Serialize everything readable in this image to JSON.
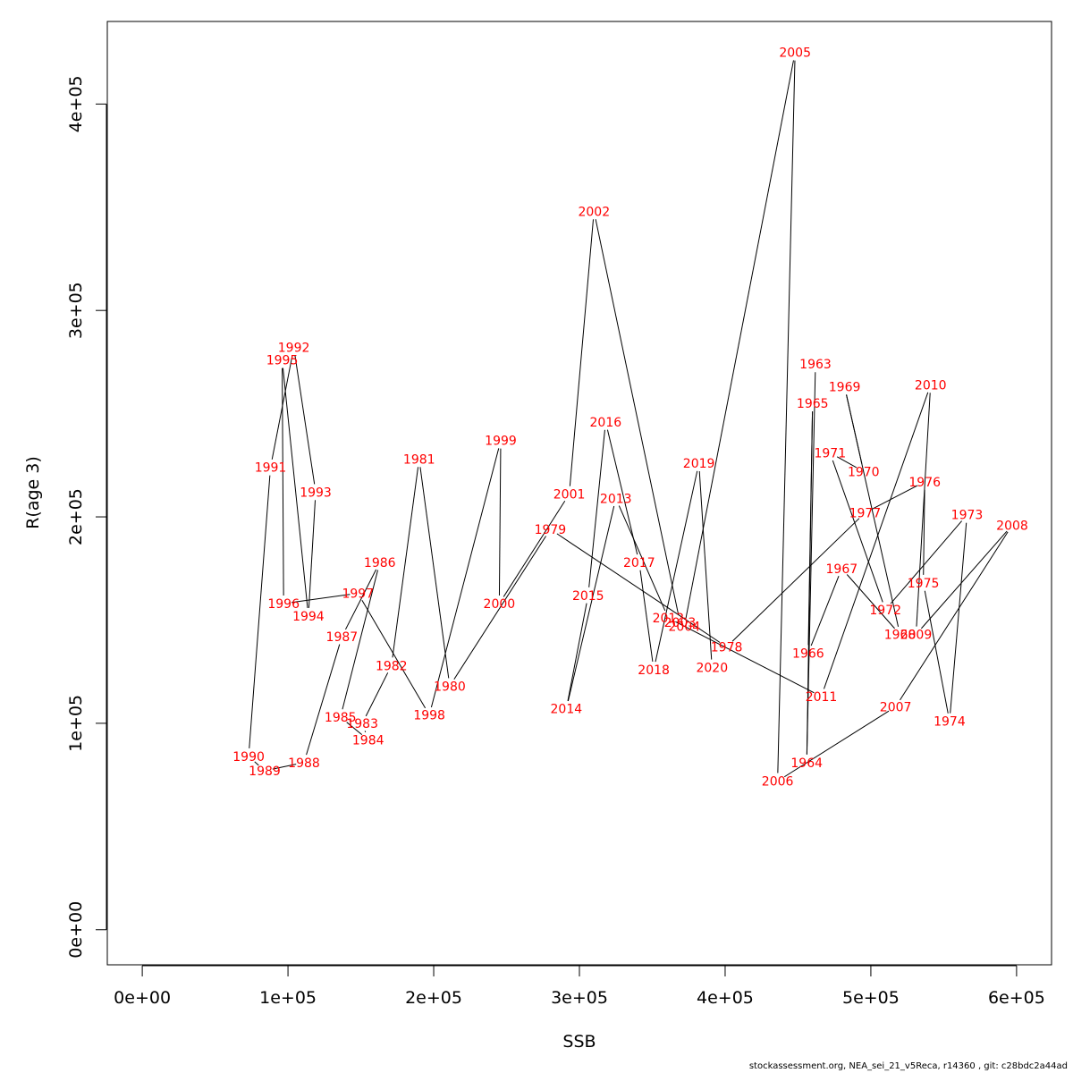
{
  "chart_data": {
    "type": "line",
    "xlabel": "SSB",
    "ylabel": "R(age 3)",
    "xlim": [
      -24000,
      624000
    ],
    "ylim": [
      -17000,
      440000
    ],
    "x_ticks": [
      0,
      100000,
      200000,
      300000,
      400000,
      500000,
      600000
    ],
    "x_tick_labels": [
      "0e+00",
      "1e+05",
      "2e+05",
      "3e+05",
      "4e+05",
      "5e+05",
      "6e+05"
    ],
    "y_ticks": [
      0,
      100000,
      200000,
      300000,
      400000
    ],
    "y_tick_labels": [
      "0e+00",
      "1e+05",
      "2e+05",
      "3e+05",
      "4e+05"
    ],
    "series": [
      {
        "points": [
          {
            "label": "1963",
            "x": 462000,
            "y": 274000
          },
          {
            "label": "1964",
            "x": 456000,
            "y": 81000
          },
          {
            "label": "1965",
            "x": 460000,
            "y": 255000
          },
          {
            "label": "1966",
            "x": 457000,
            "y": 134000
          },
          {
            "label": "1967",
            "x": 480000,
            "y": 175000
          },
          {
            "label": "1968",
            "x": 520000,
            "y": 143000
          },
          {
            "label": "1969",
            "x": 482000,
            "y": 263000
          },
          {
            "label": "1970",
            "x": 495000,
            "y": 222000
          },
          {
            "label": "1971",
            "x": 472000,
            "y": 231000
          },
          {
            "label": "1972",
            "x": 510000,
            "y": 155000
          },
          {
            "label": "1973",
            "x": 566000,
            "y": 201000
          },
          {
            "label": "1974",
            "x": 554000,
            "y": 101000
          },
          {
            "label": "1975",
            "x": 536000,
            "y": 168000
          },
          {
            "label": "1976",
            "x": 537000,
            "y": 217000
          },
          {
            "label": "1977",
            "x": 496000,
            "y": 202000
          },
          {
            "label": "1978",
            "x": 401000,
            "y": 137000
          },
          {
            "label": "1979",
            "x": 280000,
            "y": 194000
          },
          {
            "label": "1980",
            "x": 211000,
            "y": 118000
          },
          {
            "label": "1981",
            "x": 190000,
            "y": 228000
          },
          {
            "label": "1982",
            "x": 171000,
            "y": 128000
          },
          {
            "label": "1983",
            "x": 151000,
            "y": 100000
          },
          {
            "label": "1984",
            "x": 155000,
            "y": 92000
          },
          {
            "label": "1985",
            "x": 136000,
            "y": 103000
          },
          {
            "label": "1986",
            "x": 163000,
            "y": 178000
          },
          {
            "label": "1987",
            "x": 137000,
            "y": 142000
          },
          {
            "label": "1988",
            "x": 111000,
            "y": 81000
          },
          {
            "label": "1989",
            "x": 84000,
            "y": 77000
          },
          {
            "label": "1990",
            "x": 73000,
            "y": 84000
          },
          {
            "label": "1991",
            "x": 88000,
            "y": 224000
          },
          {
            "label": "1992",
            "x": 104000,
            "y": 282000
          },
          {
            "label": "1993",
            "x": 119000,
            "y": 212000
          },
          {
            "label": "1994",
            "x": 114000,
            "y": 152000
          },
          {
            "label": "1995",
            "x": 96000,
            "y": 276000
          },
          {
            "label": "1996",
            "x": 97000,
            "y": 158000
          },
          {
            "label": "1997",
            "x": 148000,
            "y": 163000
          },
          {
            "label": "1998",
            "x": 197000,
            "y": 104000
          },
          {
            "label": "1999",
            "x": 246000,
            "y": 237000
          },
          {
            "label": "2000",
            "x": 245000,
            "y": 158000
          },
          {
            "label": "2001",
            "x": 293000,
            "y": 211000
          },
          {
            "label": "2002",
            "x": 310000,
            "y": 348000
          },
          {
            "label": "2003",
            "x": 369000,
            "y": 149000
          },
          {
            "label": "2004",
            "x": 372000,
            "y": 147000
          },
          {
            "label": "2005",
            "x": 448000,
            "y": 425000
          },
          {
            "label": "2006",
            "x": 436000,
            "y": 72000
          },
          {
            "label": "2007",
            "x": 517000,
            "y": 108000
          },
          {
            "label": "2008",
            "x": 597000,
            "y": 196000
          },
          {
            "label": "2009",
            "x": 531000,
            "y": 143000
          },
          {
            "label": "2010",
            "x": 541000,
            "y": 264000
          },
          {
            "label": "2011",
            "x": 466000,
            "y": 113000
          },
          {
            "label": "2012",
            "x": 361000,
            "y": 151000
          },
          {
            "label": "2013",
            "x": 325000,
            "y": 209000
          },
          {
            "label": "2014",
            "x": 291000,
            "y": 107000
          },
          {
            "label": "2015",
            "x": 306000,
            "y": 162000
          },
          {
            "label": "2016",
            "x": 318000,
            "y": 246000
          },
          {
            "label": "2017",
            "x": 341000,
            "y": 178000
          },
          {
            "label": "2018",
            "x": 351000,
            "y": 126000
          },
          {
            "label": "2019",
            "x": 382000,
            "y": 226000
          },
          {
            "label": "2020",
            "x": 391000,
            "y": 127000
          }
        ]
      }
    ],
    "colors": {
      "line": "#000000",
      "labels": "#ff0000",
      "axis": "#000000"
    }
  },
  "footer": "stockassessment.org, NEA_sei_21_v5Reca, r14360 , git: c28bdc2a44ad"
}
